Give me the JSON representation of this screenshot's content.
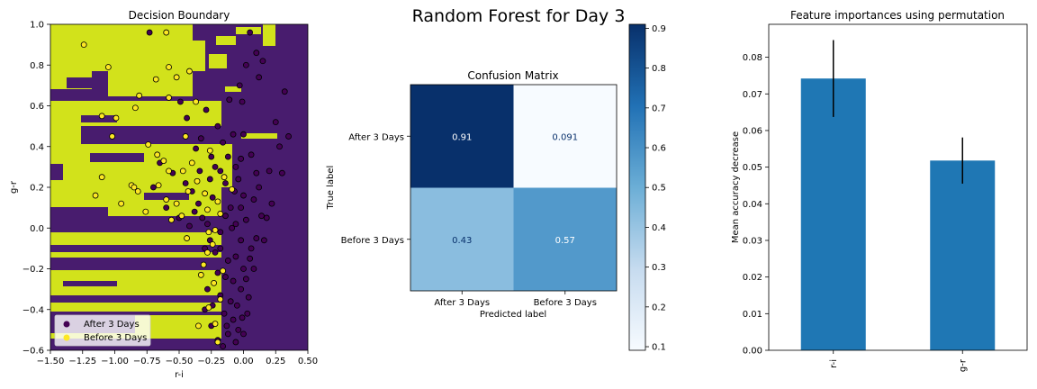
{
  "suptitle": "Random Forest for Day 3",
  "chart_data": [
    {
      "type": "scatter",
      "title": "Decision Boundary",
      "xlabel": "r-i",
      "ylabel": "g-r",
      "xlim": [
        -1.5,
        0.5
      ],
      "ylim": [
        -0.6,
        1.0
      ],
      "xticks": [
        "−1.50",
        "−1.25",
        "−1.00",
        "−0.75",
        "−0.50",
        "−0.25",
        "0.00",
        "0.25",
        "0.50"
      ],
      "yticks": [
        "−0.6",
        "−0.4",
        "−0.2",
        "0.0",
        "0.2",
        "0.4",
        "0.6",
        "0.8",
        "1.0"
      ],
      "legend_position": "lower-left",
      "series": [
        {
          "name": "After 3 Days",
          "color": "#440154",
          "points": [
            [
              -0.73,
              0.96
            ],
            [
              -0.49,
              0.62
            ],
            [
              -0.44,
              0.54
            ],
            [
              -0.37,
              0.39
            ],
            [
              -0.33,
              0.44
            ],
            [
              -0.29,
              0.58
            ],
            [
              -0.25,
              0.35
            ],
            [
              -0.2,
              0.5
            ],
            [
              -0.18,
              0.28
            ],
            [
              -0.14,
              0.22
            ],
            [
              -0.11,
              0.63
            ],
            [
              -0.06,
              0.3
            ],
            [
              -0.03,
              0.7
            ],
            [
              -0.01,
              0.62
            ],
            [
              0.0,
              0.46
            ],
            [
              0.02,
              0.8
            ],
            [
              0.05,
              0.96
            ],
            [
              0.1,
              0.86
            ],
            [
              0.12,
              0.74
            ],
            [
              0.15,
              0.82
            ],
            [
              0.2,
              0.28
            ],
            [
              0.25,
              0.52
            ],
            [
              0.28,
              0.4
            ],
            [
              0.32,
              0.67
            ],
            [
              0.35,
              0.45
            ],
            [
              0.3,
              0.27
            ],
            [
              0.22,
              0.12
            ],
            [
              0.18,
              0.05
            ],
            [
              0.1,
              -0.05
            ],
            [
              0.05,
              -0.15
            ],
            [
              0.02,
              -0.25
            ],
            [
              -0.02,
              -0.3
            ],
            [
              -0.05,
              -0.38
            ],
            [
              -0.08,
              -0.45
            ],
            [
              -0.12,
              -0.52
            ],
            [
              -0.15,
              -0.42
            ],
            [
              -0.18,
              -0.33
            ],
            [
              -0.2,
              -0.22
            ],
            [
              -0.22,
              -0.12
            ],
            [
              -0.18,
              -0.02
            ],
            [
              -0.14,
              0.06
            ],
            [
              -0.1,
              0.1
            ],
            [
              -0.06,
              0.02
            ],
            [
              -0.02,
              -0.06
            ],
            [
              0.02,
              0.04
            ],
            [
              0.06,
              -0.1
            ],
            [
              0.08,
              -0.2
            ],
            [
              0.04,
              -0.34
            ],
            [
              -0.01,
              -0.44
            ],
            [
              -0.04,
              -0.5
            ],
            [
              -0.16,
              -0.58
            ],
            [
              -0.25,
              -0.48
            ],
            [
              -0.28,
              -0.3
            ],
            [
              -0.3,
              -0.1
            ],
            [
              -0.32,
              0.05
            ],
            [
              -0.35,
              0.12
            ],
            [
              -0.4,
              0.18
            ],
            [
              -0.45,
              0.22
            ],
            [
              -0.55,
              0.27
            ],
            [
              -0.65,
              0.32
            ],
            [
              -0.7,
              0.2
            ],
            [
              -0.6,
              0.1
            ],
            [
              -0.5,
              0.05
            ],
            [
              -0.42,
              0.01
            ],
            [
              -0.24,
              0.15
            ],
            [
              -0.12,
              0.35
            ],
            [
              0.0,
              0.16
            ],
            [
              0.12,
              0.2
            ],
            [
              0.14,
              0.06
            ],
            [
              0.16,
              -0.06
            ],
            [
              0.0,
              -0.2
            ],
            [
              -0.08,
              -0.26
            ],
            [
              -0.12,
              -0.16
            ],
            [
              -0.1,
              -0.36
            ],
            [
              -0.06,
              -0.56
            ],
            [
              0.0,
              -0.52
            ],
            [
              -0.2,
              -0.55
            ],
            [
              -0.22,
              0.3
            ],
            [
              -0.26,
              0.24
            ],
            [
              -0.34,
              0.28
            ],
            [
              -0.38,
              0.08
            ],
            [
              -0.16,
              0.42
            ],
            [
              -0.08,
              0.46
            ],
            [
              0.06,
              0.36
            ],
            [
              0.08,
              0.14
            ],
            [
              -0.04,
              0.24
            ],
            [
              -0.3,
              -0.4
            ],
            [
              -0.24,
              -0.38
            ],
            [
              -0.14,
              -0.24
            ],
            [
              -0.18,
              -0.1
            ],
            [
              -0.26,
              -0.06
            ],
            [
              -0.28,
              0.02
            ],
            [
              0.1,
              0.27
            ],
            [
              -0.02,
              0.1
            ],
            [
              -0.06,
              -0.14
            ],
            [
              0.03,
              -0.42
            ],
            [
              -0.13,
              -0.48
            ],
            [
              -0.09,
              0.0
            ],
            [
              -0.07,
              0.18
            ],
            [
              -0.02,
              0.34
            ]
          ]
        },
        {
          "name": "Before 3 Days",
          "color": "#fde725",
          "points": [
            [
              -1.24,
              0.9
            ],
            [
              -0.6,
              0.96
            ],
            [
              -0.58,
              0.79
            ],
            [
              -1.05,
              0.79
            ],
            [
              -0.42,
              0.77
            ],
            [
              -0.68,
              0.73
            ],
            [
              -0.52,
              0.74
            ],
            [
              -0.81,
              0.65
            ],
            [
              -0.58,
              0.64
            ],
            [
              -0.84,
              0.59
            ],
            [
              -1.1,
              0.55
            ],
            [
              -0.99,
              0.54
            ],
            [
              -1.02,
              0.45
            ],
            [
              -0.45,
              0.45
            ],
            [
              -0.37,
              0.62
            ],
            [
              -0.74,
              0.41
            ],
            [
              -0.67,
              0.36
            ],
            [
              -0.62,
              0.33
            ],
            [
              -1.15,
              0.16
            ],
            [
              -1.1,
              0.25
            ],
            [
              -0.87,
              0.21
            ],
            [
              -0.85,
              0.2
            ],
            [
              -0.82,
              0.18
            ],
            [
              -0.95,
              0.12
            ],
            [
              -0.76,
              0.08
            ],
            [
              -0.6,
              0.14
            ],
            [
              -0.52,
              0.12
            ],
            [
              -0.47,
              0.28
            ],
            [
              -0.36,
              0.23
            ],
            [
              -0.3,
              0.17
            ],
            [
              -0.28,
              0.09
            ],
            [
              -0.2,
              0.13
            ],
            [
              -0.18,
              0.07
            ],
            [
              -0.22,
              -0.01
            ],
            [
              -0.24,
              -0.08
            ],
            [
              -0.31,
              -0.18
            ],
            [
              -0.23,
              -0.27
            ],
            [
              -0.27,
              -0.39
            ],
            [
              -0.22,
              -0.47
            ],
            [
              -0.2,
              -0.56
            ],
            [
              -0.18,
              -0.35
            ],
            [
              -0.16,
              -0.21
            ],
            [
              -0.44,
              -0.05
            ],
            [
              -0.48,
              0.06
            ],
            [
              -0.56,
              0.04
            ],
            [
              -0.66,
              0.21
            ],
            [
              -0.58,
              0.28
            ],
            [
              -0.43,
              0.18
            ],
            [
              -0.4,
              0.32
            ],
            [
              -0.26,
              0.38
            ],
            [
              -0.15,
              0.25
            ],
            [
              -0.09,
              0.19
            ],
            [
              -0.33,
              -0.23
            ],
            [
              -0.35,
              -0.48
            ],
            [
              -0.28,
              -0.12
            ],
            [
              -0.27,
              -0.02
            ]
          ]
        }
      ]
    },
    {
      "type": "heatmap",
      "title": "Confusion Matrix",
      "xlabel": "Predicted label",
      "ylabel": "True label",
      "x_categories": [
        "After 3 Days",
        "Before 3 Days"
      ],
      "y_categories": [
        "After 3 Days",
        "Before 3 Days"
      ],
      "values": [
        [
          0.91,
          0.091
        ],
        [
          0.43,
          0.57
        ]
      ],
      "cell_labels": [
        [
          "0.91",
          "0.091"
        ],
        [
          "0.43",
          "0.57"
        ]
      ],
      "colorbar_range": [
        0.091,
        0.91
      ],
      "colorbar_ticks": [
        "0.1",
        "0.2",
        "0.3",
        "0.4",
        "0.5",
        "0.6",
        "0.7",
        "0.8",
        "0.9"
      ],
      "colormap": "Blues"
    },
    {
      "type": "bar",
      "title": "Feature importances using permutation",
      "ylabel": "Mean accuracy decrease",
      "xlabel": "",
      "categories": [
        "r-i",
        "g-r"
      ],
      "values": [
        0.0742,
        0.0518
      ],
      "errors": [
        0.0105,
        0.0063
      ],
      "ylim": [
        0,
        0.089
      ],
      "yticks": [
        "0.00",
        "0.01",
        "0.02",
        "0.03",
        "0.04",
        "0.05",
        "0.06",
        "0.07",
        "0.08"
      ],
      "bar_color": "#1f77b4"
    }
  ]
}
